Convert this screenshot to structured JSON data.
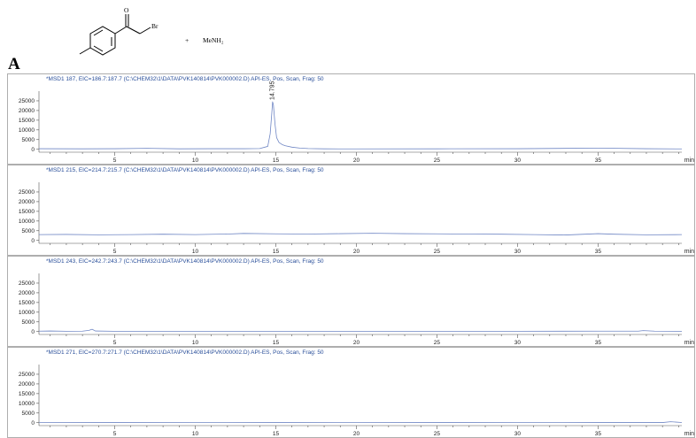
{
  "reaction": {
    "reagent_label": "MeNH₂",
    "plus": "+",
    "carbonyl_atom": "O",
    "halogen_atom": "Br"
  },
  "panel_label": "A",
  "chart_data": [
    {
      "type": "line",
      "header": "*MSD1 187, EIC=186.7:187.7 (C:\\CHEM32\\1\\DATA\\PVK140814\\PVK000002.D)    API-ES, Pos, Scan, Frag: 50",
      "x_unit": "min",
      "xlim": [
        0.3,
        40.2
      ],
      "x_ticks": [
        5,
        10,
        15,
        20,
        25,
        30,
        35
      ],
      "ylim": [
        -1500,
        30000
      ],
      "y_ticks": [
        0,
        5000,
        10000,
        15000,
        20000,
        25000
      ],
      "peak_labels": [
        {
          "x": 14.795,
          "y": 24500,
          "text": "14.795"
        }
      ],
      "x": [
        0.3,
        3.0,
        5.0,
        7.0,
        9.0,
        11.0,
        13.0,
        14.0,
        14.5,
        14.65,
        14.75,
        14.8,
        14.85,
        14.95,
        15.05,
        15.2,
        15.4,
        15.6,
        16.0,
        16.5,
        17.0,
        18.0,
        20.0,
        25.0,
        30.0,
        35.0,
        38.0,
        40.2
      ],
      "y": [
        300,
        250,
        300,
        500,
        250,
        300,
        300,
        400,
        1500,
        8000,
        18500,
        24500,
        23000,
        13000,
        6000,
        3500,
        2400,
        1800,
        1100,
        600,
        400,
        250,
        200,
        250,
        300,
        600,
        300,
        200
      ],
      "grid": false,
      "legend": "none"
    },
    {
      "type": "line",
      "header": "*MSD1 215, EIC=214.7:215.7 (C:\\CHEM32\\1\\DATA\\PVK140814\\PVK000002.D)    API-ES, Pos, Scan, Frag: 50",
      "x_unit": "min",
      "xlim": [
        0.3,
        40.2
      ],
      "x_ticks": [
        5,
        10,
        15,
        20,
        25,
        30,
        35
      ],
      "ylim": [
        -1500,
        30000
      ],
      "y_ticks": [
        0,
        5000,
        10000,
        15000,
        20000,
        25000
      ],
      "x": [
        0.3,
        2.0,
        4.0,
        6.0,
        8.0,
        10.0,
        12.0,
        13.0,
        15.0,
        17.0,
        19.0,
        21.0,
        23.0,
        25.0,
        27.0,
        29.0,
        31.0,
        33.0,
        35.0,
        36.0,
        38.0,
        40.2
      ],
      "y": [
        3000,
        3100,
        2900,
        3000,
        3200,
        3000,
        3300,
        3600,
        3400,
        3300,
        3500,
        3700,
        3500,
        3400,
        3300,
        3200,
        3000,
        2800,
        3500,
        3200,
        2900,
        3000
      ],
      "grid": false,
      "legend": "none"
    },
    {
      "type": "line",
      "header": "*MSD1 243, EIC=242.7:243.7 (C:\\CHEM32\\1\\DATA\\PVK140814\\PVK000002.D)    API-ES, Pos, Scan, Frag: 50",
      "x_unit": "min",
      "xlim": [
        0.3,
        40.2
      ],
      "x_ticks": [
        5,
        10,
        15,
        20,
        25,
        30,
        35
      ],
      "ylim": [
        -1500,
        30000
      ],
      "y_ticks": [
        0,
        5000,
        10000,
        15000,
        20000,
        25000
      ],
      "x": [
        0.3,
        1.0,
        2.0,
        3.0,
        3.4,
        3.6,
        3.8,
        5.0,
        10.0,
        15.0,
        20.0,
        25.0,
        30.0,
        35.0,
        37.5,
        37.8,
        38.5,
        40.2
      ],
      "y": [
        200,
        300,
        150,
        200,
        600,
        1200,
        300,
        150,
        150,
        150,
        150,
        150,
        150,
        200,
        200,
        500,
        200,
        150
      ],
      "grid": false,
      "legend": "none"
    },
    {
      "type": "line",
      "header": "*MSD1 271, EIC=270.7:271.7 (C:\\CHEM32\\1\\DATA\\PVK140814\\PVK000002.D)    API-ES, Pos, Scan, Frag: 50",
      "x_unit": "min",
      "xlim": [
        0.3,
        40.2
      ],
      "x_ticks": [
        5,
        10,
        15,
        20,
        25,
        30,
        35
      ],
      "ylim": [
        -1500,
        30000
      ],
      "y_ticks": [
        0,
        5000,
        10000,
        15000,
        20000,
        25000
      ],
      "x": [
        0.3,
        5.0,
        10.0,
        15.0,
        20.0,
        25.0,
        30.0,
        35.0,
        39.0,
        39.5,
        40.2
      ],
      "y": [
        50,
        60,
        50,
        60,
        50,
        60,
        50,
        60,
        80,
        500,
        100
      ],
      "grid": false,
      "legend": "none"
    }
  ]
}
